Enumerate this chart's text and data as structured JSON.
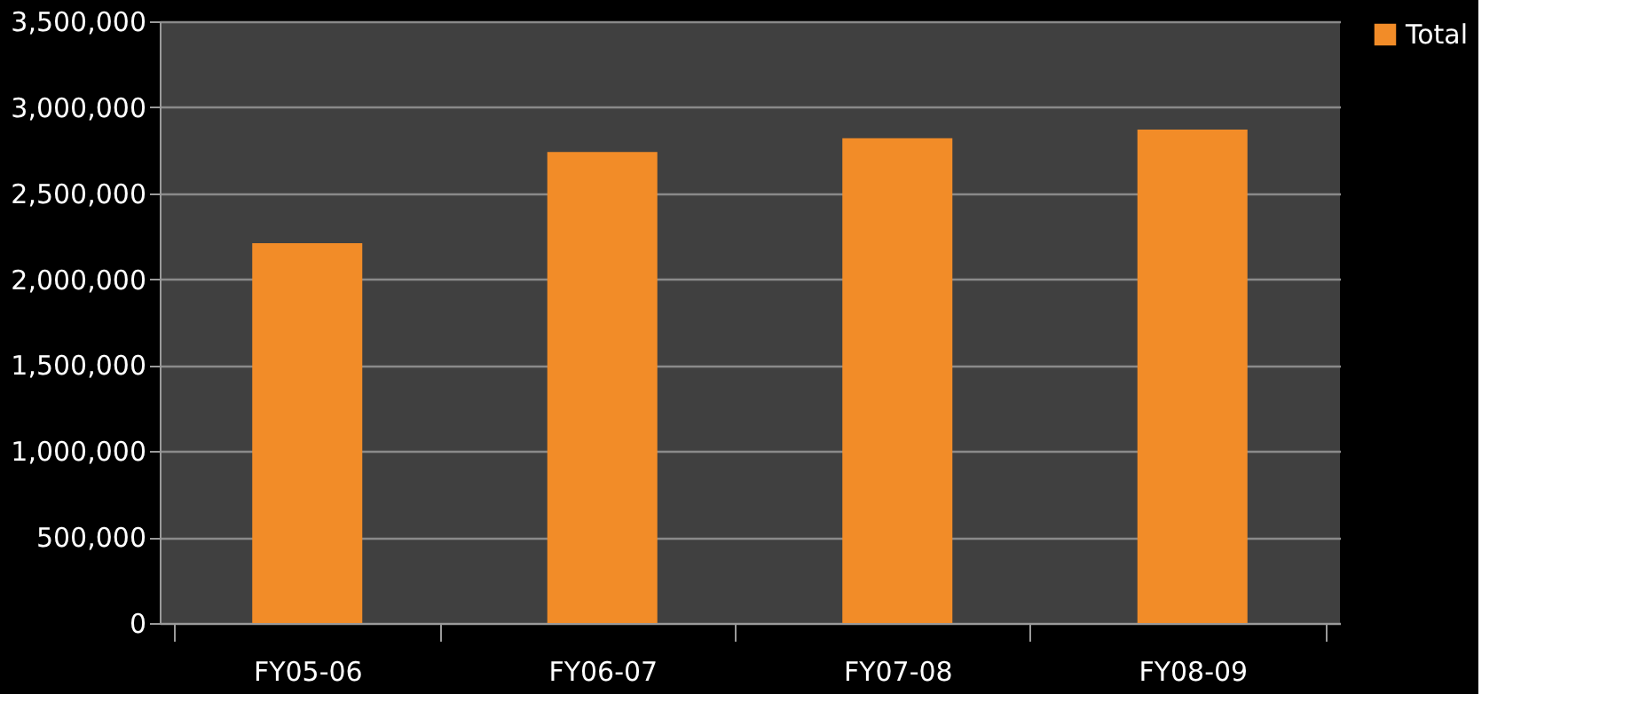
{
  "chart_data": {
    "type": "bar",
    "categories": [
      "FY05-06",
      "FY06-07",
      "FY07-08",
      "FY08-09"
    ],
    "series": [
      {
        "name": "Total",
        "color": "#f28c28",
        "values": [
          2210000,
          2740000,
          2820000,
          2870000
        ]
      }
    ],
    "ylim": [
      0,
      3500000
    ],
    "yticks": [
      0,
      {
        "value": 500000,
        "label": "500,000"
      },
      {
        "value": 1000000,
        "label": "1,000,000"
      },
      {
        "value": 1500000,
        "label": "1,500,000"
      },
      {
        "value": 2000000,
        "label": "2,000,000"
      },
      {
        "value": 2500000,
        "label": "2,500,000"
      },
      {
        "value": 3000000,
        "label": "3,000,000"
      },
      {
        "value": 3500000,
        "label": "3,500,000"
      }
    ],
    "grid": "y",
    "legend": "right"
  }
}
